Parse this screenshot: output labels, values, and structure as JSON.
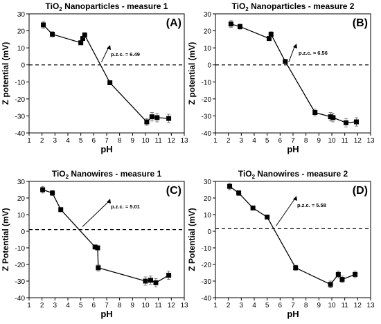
{
  "chart_data": [
    {
      "type": "line",
      "title": "TiO2 Nanoparticles - measure 1",
      "title_main": "TiO",
      "title_sub": "2",
      "title_rest": " Nanoparticles - measure 1",
      "panel_label": "(A)",
      "xlabel": "pH",
      "ylabel": "Z potential  (mV)",
      "xlim": [
        1,
        13
      ],
      "ylim": [
        -40,
        30
      ],
      "xticks": [
        "1",
        "2",
        "3",
        "4",
        "5",
        "6",
        "7",
        "8",
        "9",
        "10",
        "11",
        "12",
        "13"
      ],
      "yticks": [
        "-40",
        "-30",
        "-20",
        "-10",
        "0",
        "10",
        "20",
        "30"
      ],
      "zero_line": 0,
      "annotation": "p.z.c. = 6.49",
      "pzc": 6.49,
      "x": [
        2.1,
        2.8,
        5.0,
        5.15,
        5.3,
        7.25,
        10.1,
        10.5,
        10.9,
        11.8
      ],
      "y": [
        23.5,
        18,
        13,
        15.5,
        17.5,
        -10.5,
        -33.5,
        -30.5,
        -31,
        -31.5
      ],
      "err": [
        2,
        1.5,
        1,
        1,
        1.5,
        1,
        2,
        2.5,
        2.5,
        2.5
      ]
    },
    {
      "type": "line",
      "title": "TiO2 Nanoparticles - measure 2",
      "title_main": "TiO",
      "title_sub": "2",
      "title_rest": " Nanoparticles - measure 2",
      "panel_label": "(B)",
      "xlabel": "pH",
      "ylabel": "Z potential  (mV)",
      "xlim": [
        1,
        13
      ],
      "ylim": [
        -40,
        30
      ],
      "xticks": [
        "1",
        "2",
        "3",
        "4",
        "5",
        "6",
        "7",
        "8",
        "9",
        "10",
        "11",
        "12",
        "13"
      ],
      "yticks": [
        "-40",
        "-30",
        "-20",
        "-10",
        "0",
        "10",
        "20",
        "30"
      ],
      "zero_line": 0,
      "annotation": "p.z.c. = 6.56",
      "pzc": 6.56,
      "x": [
        2.2,
        2.9,
        5.15,
        5.3,
        6.4,
        8.7,
        9.9,
        10.1,
        11.1,
        11.9
      ],
      "y": [
        24,
        22.5,
        15.5,
        18,
        2,
        -28,
        -30.5,
        -31,
        -34,
        -33.5
      ],
      "err": [
        2,
        1.5,
        1,
        1.5,
        1,
        2,
        2.5,
        2.5,
        2.5,
        2.5
      ]
    },
    {
      "type": "line",
      "title": "TiO2 Nanowires - measure 1",
      "title_main": "TiO",
      "title_sub": "2",
      "title_rest": " Nanowires - measure 1",
      "panel_label": "(C)",
      "xlabel": "pH",
      "ylabel": "Z Potential  (mV)",
      "xlim": [
        1,
        13
      ],
      "ylim": [
        -40,
        30
      ],
      "xticks": [
        "1",
        "2",
        "3",
        "4",
        "5",
        "6",
        "7",
        "8",
        "9",
        "10",
        "11",
        "12",
        "13"
      ],
      "yticks": [
        "-40",
        "-30",
        "-20",
        "-10",
        "0",
        "10",
        "20",
        "30"
      ],
      "zero_line": 1,
      "annotation": "p.z.c. = 5.01",
      "pzc": 5.01,
      "x": [
        2.05,
        2.8,
        3.45,
        6.1,
        6.3,
        6.35,
        10.0,
        10.4,
        10.8,
        11.8
      ],
      "y": [
        25,
        23,
        13,
        -9.5,
        -10,
        -22,
        -30,
        -29.5,
        -31,
        -26.5
      ],
      "err": [
        2,
        1.5,
        1,
        1,
        1,
        2,
        2.5,
        2.5,
        2.5,
        2.5
      ]
    },
    {
      "type": "line",
      "title": "TiO2 Nanowires - measure 2",
      "title_main": "TiO",
      "title_sub": "2",
      "title_rest": " Nanowires - measure 2",
      "panel_label": "(D)",
      "xlabel": "pH",
      "ylabel": "Z Potential  (mV)",
      "xlim": [
        1,
        13
      ],
      "ylim": [
        -40,
        30
      ],
      "xticks": [
        "1",
        "2",
        "3",
        "4",
        "5",
        "6",
        "7",
        "8",
        "9",
        "10",
        "11",
        "12",
        "13"
      ],
      "yticks": [
        "-40",
        "-30",
        "-20",
        "-10",
        "0",
        "10",
        "20",
        "30"
      ],
      "zero_line": 1.5,
      "annotation": "p.z.c. = 5.58",
      "pzc": 5.58,
      "x": [
        2.1,
        2.8,
        3.9,
        5.0,
        7.2,
        9.9,
        10.5,
        10.8,
        11.8
      ],
      "y": [
        27,
        23,
        14,
        8.5,
        -22,
        -32,
        -26,
        -29,
        -26
      ],
      "err": [
        2,
        1.5,
        1,
        1,
        1.5,
        2,
        2,
        2,
        2
      ]
    }
  ]
}
